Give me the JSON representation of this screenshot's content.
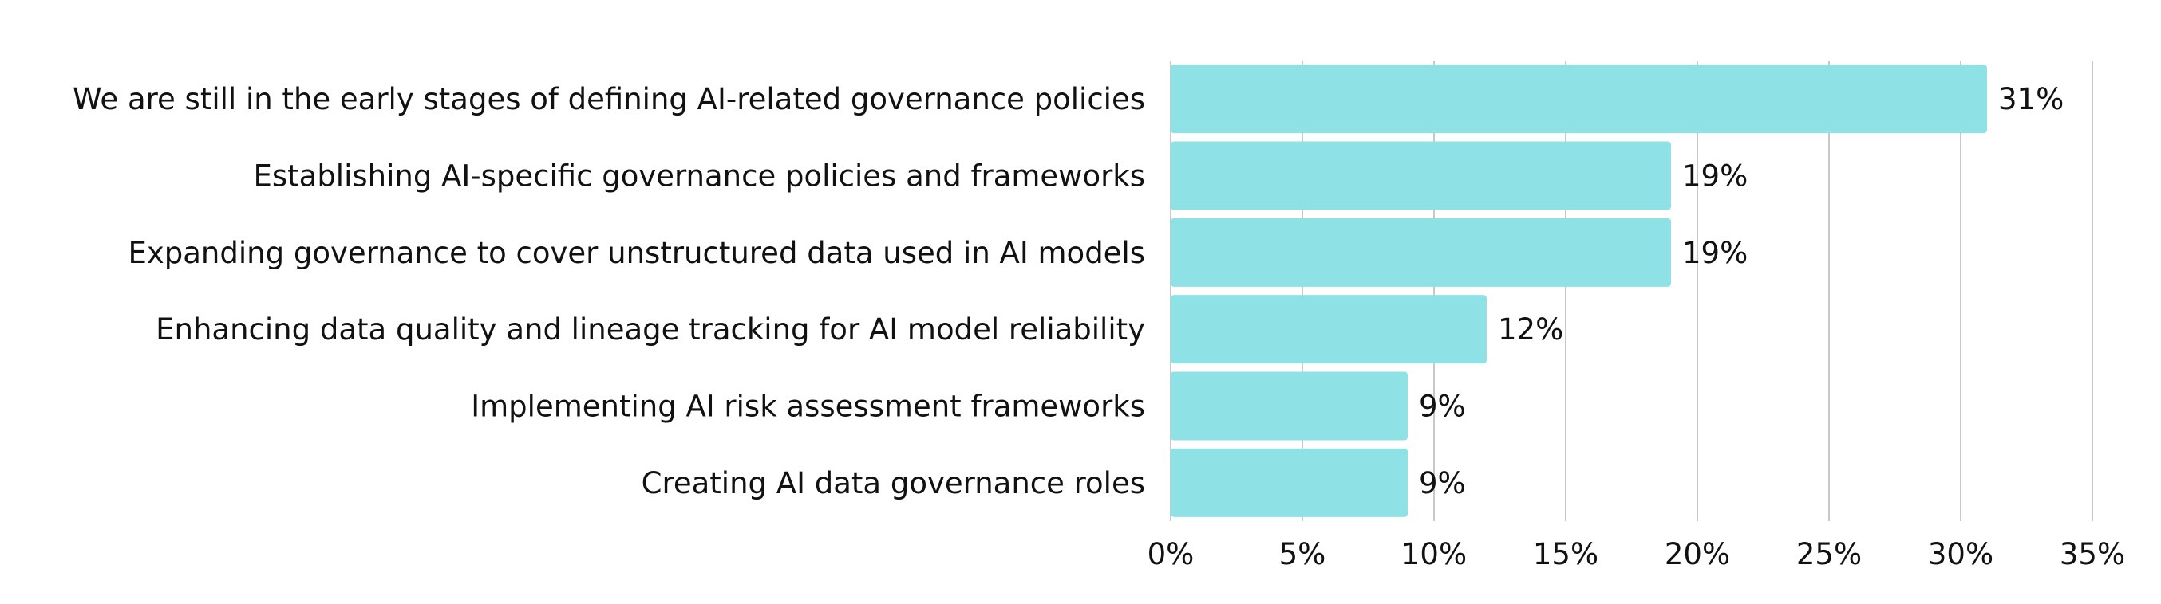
{
  "chart_data": {
    "type": "bar",
    "orientation": "horizontal",
    "title": "",
    "xlabel": "",
    "ylabel": "",
    "categories": [
      "We are still in the early stages of defining AI-related governance policies",
      "Establishing AI-specific governance policies and frameworks",
      "Expanding governance to cover unstructured data used in AI models",
      "Enhancing data quality and lineage tracking for AI model reliability",
      "Implementing AI risk assessment frameworks",
      "Creating AI data governance roles"
    ],
    "values": [
      31,
      19,
      19,
      12,
      9,
      9
    ],
    "value_labels": [
      "31%",
      "19%",
      "19%",
      "12%",
      "9%",
      "9%"
    ],
    "xlim": [
      0,
      35
    ],
    "x_ticks": [
      0,
      5,
      10,
      15,
      20,
      25,
      30,
      35
    ],
    "x_tick_labels": [
      "0%",
      "5%",
      "10%",
      "15%",
      "20%",
      "25%",
      "30%",
      "35%"
    ],
    "grid": "vertical",
    "legend": "none",
    "bar_color": "#8ee2e6"
  }
}
